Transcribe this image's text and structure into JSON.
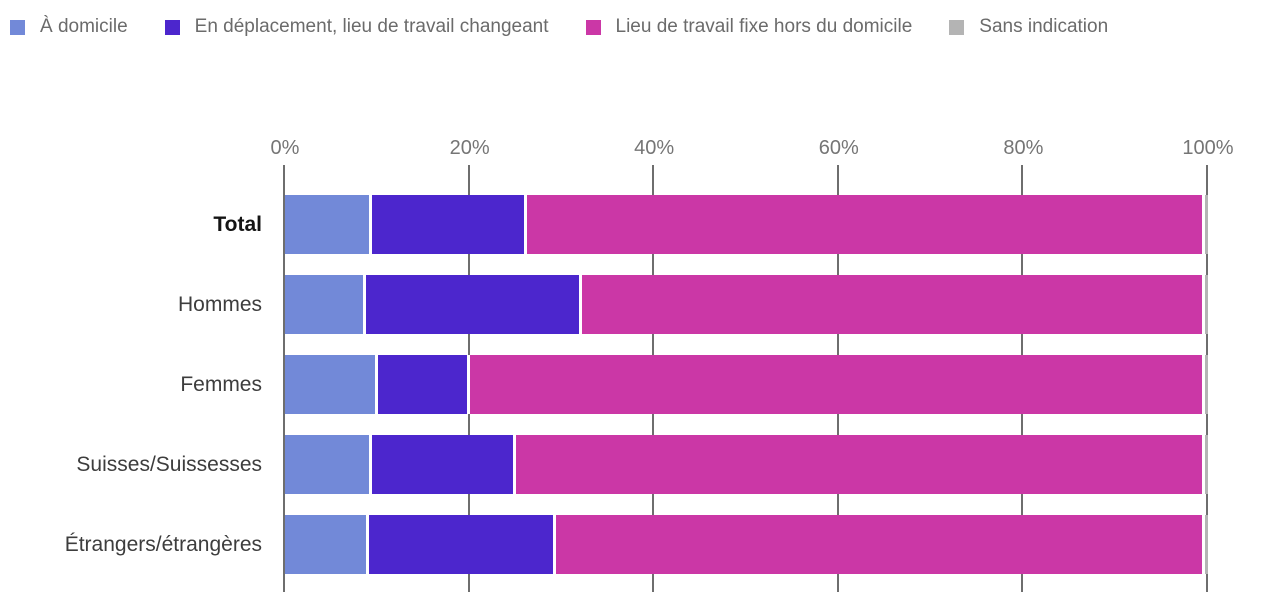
{
  "chart_data": {
    "type": "bar",
    "orientation": "horizontal",
    "stacked": true,
    "stacked_total_percent": 100,
    "title": "",
    "xlabel": "",
    "ylabel": "",
    "xlim": [
      0,
      100
    ],
    "x_tick_labels": [
      "0%",
      "20%",
      "40%",
      "60%",
      "80%",
      "100%"
    ],
    "x_tick_values": [
      0,
      20,
      40,
      60,
      80,
      100
    ],
    "grid": true,
    "legend_position": "top-left",
    "categories": [
      "Total",
      "Hommes",
      "Femmes",
      "Suisses/Suissesses",
      "Étrangers/étrangères"
    ],
    "emphasized_category": "Total",
    "series": [
      {
        "name": "À domicile",
        "color": "#7289d8",
        "values": [
          9.1,
          8.5,
          9.8,
          9.1,
          8.8
        ]
      },
      {
        "name": "En déplacement, lieu de travail changeant",
        "color": "#4c26cd",
        "values": [
          16.8,
          23.4,
          9.9,
          15.6,
          20.2
        ]
      },
      {
        "name": "Lieu de travail fixe hors du domicile",
        "color": "#cb37a6",
        "values": [
          73.5,
          67.5,
          79.7,
          74.7,
          70.4
        ]
      },
      {
        "name": "Sans indication",
        "color": "#b4b4b4",
        "values": [
          0.6,
          0.6,
          0.6,
          0.6,
          0.6
        ]
      }
    ]
  },
  "style": {
    "gridline_color": "#6e6e6e",
    "tick_label_color": "#757575",
    "legend_text_color": "#6b6b6b",
    "category_label_color": "#3d3d3d",
    "background_color": "#ffffff"
  }
}
